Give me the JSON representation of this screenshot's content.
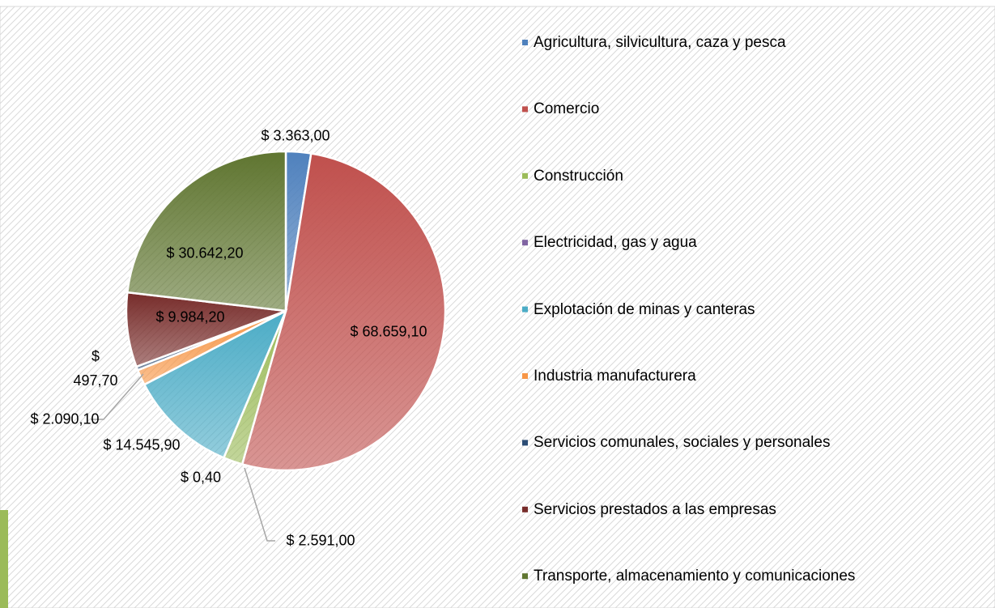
{
  "chart_data": {
    "type": "pie",
    "categories": [
      "Agricultura, silvicultura, caza y pesca",
      "Comercio",
      "Construcción",
      "Electricidad, gas y agua",
      "Explotación de minas y canteras",
      "Industria manufacturera",
      "Servicios comunales, sociales y personales",
      "Servicios prestados a las empresas",
      "Transporte, almacenamiento y comunicaciones"
    ],
    "values": [
      3363.0,
      68659.1,
      2591.0,
      0.4,
      14545.9,
      2090.1,
      497.7,
      9984.2,
      30642.2
    ],
    "value_labels": [
      "$ 3.363,00",
      "$ 68.659,10",
      "$ 2.591,00",
      "$ 0,40",
      "$ 14.545,90",
      "$ 2.090,10",
      "$ 497,70",
      "$ 9.984,20",
      "$ 30.642,20"
    ],
    "colors": [
      "#4f81bd",
      "#c0504d",
      "#9bbb59",
      "#8064a2",
      "#4bacc6",
      "#f79646",
      "#2c4d75",
      "#772c2a",
      "#5f7530"
    ],
    "legend": "right"
  }
}
